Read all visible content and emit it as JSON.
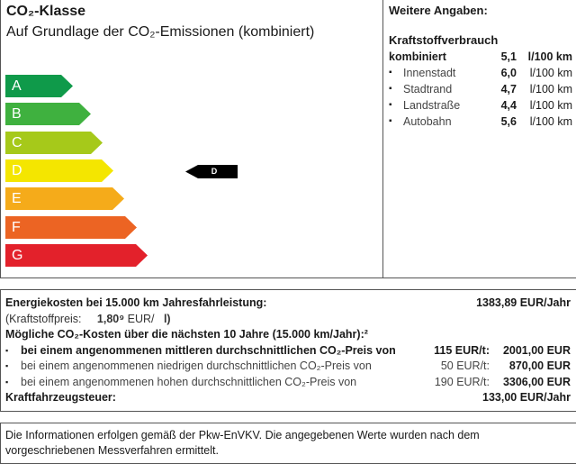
{
  "co2": {
    "title": "CO₂-Klasse",
    "subtitle": "Auf Grundlage der CO₂-Emissionen (kombiniert)",
    "classes": [
      {
        "label": "A",
        "color": "#0f9a4a"
      },
      {
        "label": "B",
        "color": "#3fb13f"
      },
      {
        "label": "C",
        "color": "#a6c91a"
      },
      {
        "label": "D",
        "color": "#f4e600"
      },
      {
        "label": "E",
        "color": "#f5ab1a"
      },
      {
        "label": "F",
        "color": "#ec6423"
      },
      {
        "label": "G",
        "color": "#e3212b"
      }
    ],
    "current_class": "D"
  },
  "weitere": {
    "title": "Weitere Angaben:",
    "heading": "Kraftstoffverbrauch",
    "rows": [
      {
        "label": "kombiniert",
        "value": "5,1",
        "unit": "l/100 km"
      },
      {
        "label": "Innenstadt",
        "value": "6,0",
        "unit": "l/100 km"
      },
      {
        "label": "Stadtrand",
        "value": "4,7",
        "unit": "l/100 km"
      },
      {
        "label": "Landstraße",
        "value": "4,4",
        "unit": "l/100 km"
      },
      {
        "label": "Autobahn",
        "value": "5,6",
        "unit": "l/100 km"
      }
    ]
  },
  "costs": {
    "energy_label": "Energiekosten bei 15.000 km Jahresfahrleistung:",
    "energy_value": "1383,89 EUR/Jahr",
    "fuel_price_label": "(Kraftstoffpreis:",
    "fuel_price_value": "1,80⁹",
    "fuel_price_unit": "EUR/",
    "fuel_price_unit2": "l)",
    "co2_heading": "Mögliche CO₂-Kosten über die nächsten 10 Jahre (15.000 km/Jahr):²",
    "items": [
      {
        "label": "bei einem angenommenen mittleren durchschnittlichen CO₂-Preis von",
        "price": "115 EUR/t:",
        "value": "2001,00 EUR"
      },
      {
        "label": "bei einem angenommenen niedrigen durchschnittlichen CO₂-Preis von",
        "price": "50 EUR/t:",
        "value": "870,00 EUR"
      },
      {
        "label": "bei einem angenommenen hohen durchschnittlichen CO₂-Preis von",
        "price": "190 EUR/t:",
        "value": "3306,00 EUR"
      }
    ],
    "tax_label": "Kraftfahrzeugsteuer:",
    "tax_value": "133,00 EUR/Jahr"
  },
  "footer": {
    "text": "Die Informationen erfolgen gemäß der Pkw-EnVKV. Die angegebenen Werte wurden nach dem vorgeschriebenen Messverfahren ermittelt."
  }
}
